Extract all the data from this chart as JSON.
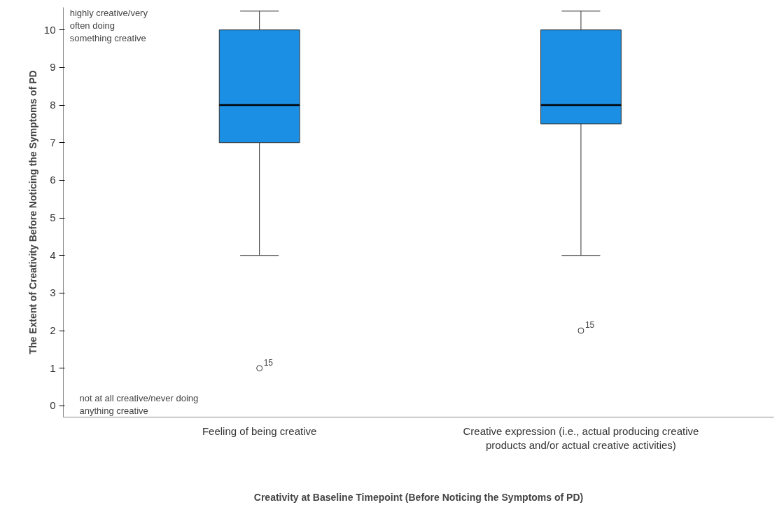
{
  "chart_data": {
    "type": "box",
    "xlabel": "Creativity at Baseline Timepoint (Before Noticing the Symptoms of PD)",
    "ylabel": "The Extent of Creativity Before Noticing the Symptoms of PD",
    "categories": [
      "Feeling of being creative",
      "Creative expression (i.e., actual producing creative\nproducts and/or actual creative activities)"
    ],
    "series": [
      {
        "color": "#1a8fe3",
        "boxes": [
          {
            "low": 4,
            "q1": 7,
            "median": 8,
            "q3": 10,
            "high": 10.5,
            "outliers": [
              1
            ]
          },
          {
            "low": 4,
            "q1": 7.5,
            "median": 8,
            "q3": 10,
            "high": 10.5,
            "outliers": [
              2
            ]
          }
        ]
      }
    ],
    "ylim": [
      -0.3,
      10.6
    ],
    "yticks": [
      0,
      1,
      2,
      3,
      4,
      5,
      6,
      7,
      8,
      9,
      10
    ],
    "grid": false,
    "annotations": [
      "highly creative/very\noften doing\nsomething creative",
      "not at all creative/never doing\nanything creative",
      "15",
      "15"
    ]
  }
}
